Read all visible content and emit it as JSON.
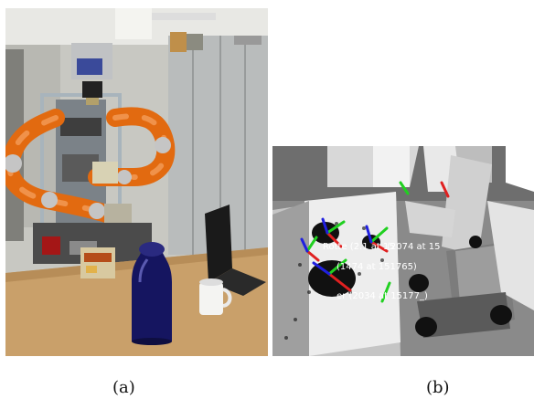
{
  "panels": [
    {
      "caption": "(a)"
    },
    {
      "caption": "(b)",
      "overlay_labels": [
        "(2074 at 15",
        "Rotte (2.1  at 15",
        "(1474 at 151765)",
        "er (2034 at 15177_)"
      ]
    }
  ]
}
